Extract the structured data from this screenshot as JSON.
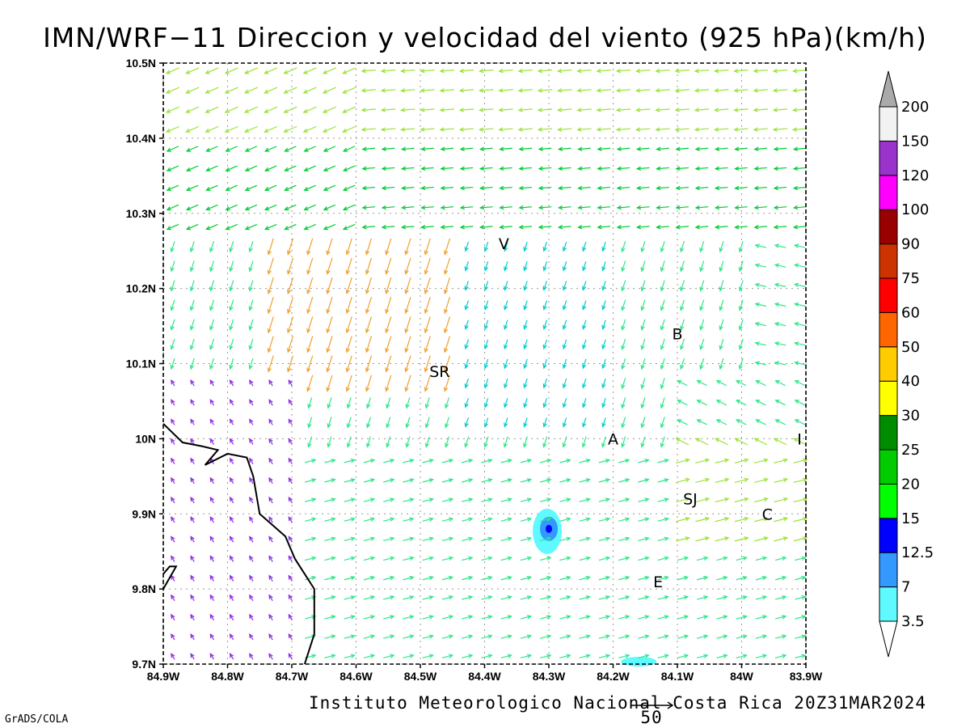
{
  "title": "IMN/WRF−11 Direccion y velocidad del viento (925 hPa)(km/h)",
  "footer": "Instituto Meteorologico Nacional Costa Rica  20Z31MAR2024",
  "credit": "GrADS/COLA",
  "reference_vector": {
    "label": "50",
    "speed": 50
  },
  "map": {
    "lon_range": [
      -84.9,
      -83.9
    ],
    "lat_range": [
      9.7,
      10.5
    ],
    "x_ticks": [
      {
        "lon": -84.9,
        "label": "84.9W"
      },
      {
        "lon": -84.8,
        "label": "84.8W"
      },
      {
        "lon": -84.7,
        "label": "84.7W"
      },
      {
        "lon": -84.6,
        "label": "84.6W"
      },
      {
        "lon": -84.5,
        "label": "84.5W"
      },
      {
        "lon": -84.4,
        "label": "84.4W"
      },
      {
        "lon": -84.3,
        "label": "84.3W"
      },
      {
        "lon": -84.2,
        "label": "84.2W"
      },
      {
        "lon": -84.1,
        "label": "84.1W"
      },
      {
        "lon": -84.0,
        "label": "84W"
      },
      {
        "lon": -83.9,
        "label": "83.9W"
      }
    ],
    "y_ticks": [
      {
        "lat": 9.7,
        "label": "9.7N"
      },
      {
        "lat": 9.8,
        "label": "9.8N"
      },
      {
        "lat": 9.9,
        "label": "9.9N"
      },
      {
        "lat": 10.0,
        "label": "10N"
      },
      {
        "lat": 10.1,
        "label": "10.1N"
      },
      {
        "lat": 10.2,
        "label": "10.2N"
      },
      {
        "lat": 10.3,
        "label": "10.3N"
      },
      {
        "lat": 10.4,
        "label": "10.4N"
      },
      {
        "lat": 10.5,
        "label": "10.5N"
      }
    ],
    "grid": true,
    "cities": [
      {
        "label": "V",
        "lon": -84.37,
        "lat": 10.26
      },
      {
        "label": "SR",
        "lon": -84.47,
        "lat": 10.09
      },
      {
        "label": "B",
        "lon": -84.1,
        "lat": 10.14
      },
      {
        "label": "A",
        "lon": -84.2,
        "lat": 10.0
      },
      {
        "label": "I",
        "lon": -83.91,
        "lat": 10.0
      },
      {
        "label": "SJ",
        "lon": -84.08,
        "lat": 9.92
      },
      {
        "label": "C",
        "lon": -83.96,
        "lat": 9.9
      },
      {
        "label": "E",
        "lon": -84.13,
        "lat": 9.81
      }
    ],
    "coastline": [
      [
        -84.9,
        10.02
      ],
      [
        -84.87,
        9.995
      ],
      [
        -84.84,
        9.99
      ],
      [
        -84.815,
        9.985
      ],
      [
        -84.835,
        9.965
      ],
      [
        -84.8,
        9.98
      ],
      [
        -84.77,
        9.975
      ],
      [
        -84.76,
        9.95
      ],
      [
        -84.75,
        9.9
      ],
      [
        -84.73,
        9.885
      ],
      [
        -84.71,
        9.87
      ],
      [
        -84.695,
        9.84
      ],
      [
        -84.68,
        9.82
      ],
      [
        -84.665,
        9.8
      ],
      [
        -84.665,
        9.74
      ],
      [
        -84.68,
        9.7
      ]
    ],
    "coastline_2": [
      [
        -84.9,
        9.82
      ],
      [
        -84.89,
        9.83
      ],
      [
        -84.88,
        9.83
      ],
      [
        -84.9,
        9.8
      ]
    ],
    "calm_spots": [
      {
        "lon": -84.3,
        "lat": 9.88,
        "shade": "#5ffaff"
      },
      {
        "lon": -84.3,
        "lat": 9.88,
        "shade": "#3399ff"
      },
      {
        "lon": -84.3,
        "lat": 9.88,
        "shade": "#0000ff"
      }
    ]
  },
  "colorbar": {
    "levels": [
      {
        "label": "3.5",
        "color": "#5ffaff"
      },
      {
        "label": "7",
        "color": "#3399ff"
      },
      {
        "label": "12.5",
        "color": "#0000ff"
      },
      {
        "label": "15",
        "color": "#00ff00"
      },
      {
        "label": "20",
        "color": "#00cc00"
      },
      {
        "label": "25",
        "color": "#008c00"
      },
      {
        "label": "30",
        "color": "#ffff00"
      },
      {
        "label": "40",
        "color": "#ffcc00"
      },
      {
        "label": "50",
        "color": "#ff6600"
      },
      {
        "label": "60",
        "color": "#ff0000"
      },
      {
        "label": "75",
        "color": "#cc3300"
      },
      {
        "label": "90",
        "color": "#990000"
      },
      {
        "label": "100",
        "color": "#ff00ff"
      },
      {
        "label": "120",
        "color": "#9933cc"
      },
      {
        "label": "150",
        "color": "#f2f2f2"
      },
      {
        "label": "200",
        "color": "#aaaaaa"
      }
    ],
    "band_colors": [
      "#5ffaff",
      "#3399ff",
      "#0000ff",
      "#00ff00",
      "#00cc00",
      "#008c00",
      "#ffff00",
      "#ffcc00",
      "#ff6600",
      "#ff0000",
      "#cc3300",
      "#990000",
      "#ff00ff",
      "#9933cc",
      "#f2f2f2"
    ],
    "speed_classes": [
      "#8a2be2",
      "#3366ff",
      "#00cccc",
      "#2ee68a",
      "#00cc33",
      "#9be33a",
      "#e6d840",
      "#f0a030",
      "#e8553a"
    ]
  },
  "wind_field_note_free": true
}
